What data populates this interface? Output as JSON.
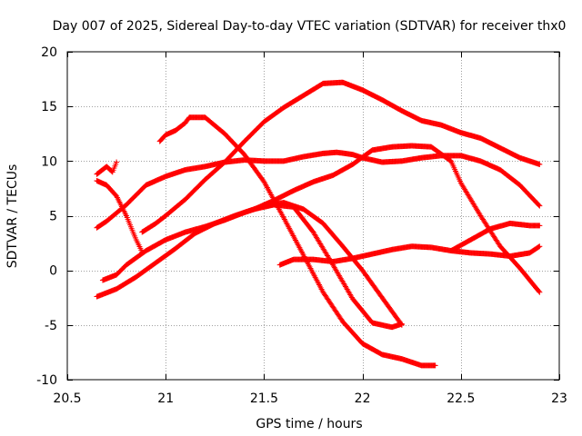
{
  "chart_data": {
    "type": "scatter",
    "title": "Day 007 of 2025, Sidereal Day-to-day VTEC variation (SDTVAR) for receiver thx0",
    "xlabel": "GPS time / hours",
    "ylabel": "SDTVAR / TECUs",
    "xlim": [
      20.5,
      23.0
    ],
    "ylim": [
      -10,
      20
    ],
    "xticks": [
      20.5,
      21,
      21.5,
      22,
      22.5,
      23
    ],
    "xtick_labels": [
      "20.5",
      "21",
      "21.5",
      "22",
      "22.5",
      "23"
    ],
    "yticks": [
      -10,
      -5,
      0,
      5,
      10,
      15,
      20
    ],
    "ytick_labels": [
      "-10",
      "-5",
      "0",
      "5",
      "10",
      "15",
      "20"
    ],
    "grid": true,
    "marker": "+",
    "color": "#ff0000",
    "series": [
      {
        "name": "s1",
        "points": [
          [
            20.65,
            3.9
          ],
          [
            20.7,
            4.5
          ],
          [
            20.8,
            6.0
          ],
          [
            20.9,
            7.8
          ],
          [
            21.0,
            8.6
          ],
          [
            21.1,
            9.2
          ],
          [
            21.2,
            9.5
          ],
          [
            21.3,
            9.9
          ],
          [
            21.4,
            10.1
          ],
          [
            21.5,
            10.0
          ],
          [
            21.6,
            10.0
          ],
          [
            21.7,
            10.4
          ],
          [
            21.8,
            10.7
          ],
          [
            21.87,
            10.8
          ],
          [
            21.95,
            10.6
          ],
          [
            22.0,
            10.3
          ],
          [
            22.1,
            9.9
          ],
          [
            22.2,
            10.0
          ],
          [
            22.3,
            10.3
          ],
          [
            22.4,
            10.5
          ],
          [
            22.5,
            10.5
          ],
          [
            22.6,
            10.0
          ],
          [
            22.7,
            9.2
          ],
          [
            22.8,
            7.8
          ],
          [
            22.9,
            5.9
          ]
        ]
      },
      {
        "name": "s2",
        "points": [
          [
            20.65,
            8.2
          ],
          [
            20.7,
            7.8
          ],
          [
            20.75,
            6.8
          ],
          [
            20.8,
            5.0
          ],
          [
            20.85,
            2.8
          ],
          [
            20.88,
            1.7
          ]
        ]
      },
      {
        "name": "s3",
        "points": [
          [
            20.65,
            8.8
          ],
          [
            20.7,
            9.5
          ],
          [
            20.73,
            9.0
          ],
          [
            20.75,
            9.9
          ]
        ]
      },
      {
        "name": "s4",
        "points": [
          [
            20.68,
            -0.9
          ],
          [
            20.75,
            -0.4
          ],
          [
            20.8,
            0.5
          ],
          [
            20.9,
            1.8
          ],
          [
            21.0,
            2.8
          ],
          [
            21.1,
            3.5
          ],
          [
            21.2,
            4.0
          ],
          [
            21.3,
            4.6
          ],
          [
            21.4,
            5.3
          ],
          [
            21.5,
            5.9
          ],
          [
            21.6,
            6.2
          ],
          [
            21.7,
            5.6
          ],
          [
            21.8,
            4.3
          ],
          [
            21.9,
            2.2
          ],
          [
            22.0,
            0.0
          ],
          [
            22.1,
            -2.5
          ],
          [
            22.2,
            -5.0
          ]
        ]
      },
      {
        "name": "s5",
        "points": [
          [
            20.65,
            -2.4
          ],
          [
            20.75,
            -1.7
          ],
          [
            20.85,
            -0.6
          ],
          [
            20.95,
            0.7
          ],
          [
            21.05,
            2.0
          ],
          [
            21.15,
            3.4
          ],
          [
            21.25,
            4.3
          ],
          [
            21.35,
            5.0
          ],
          [
            21.45,
            5.6
          ],
          [
            21.55,
            6.0
          ],
          [
            21.65,
            5.8
          ],
          [
            21.75,
            3.5
          ],
          [
            21.85,
            0.5
          ],
          [
            21.95,
            -2.6
          ],
          [
            22.05,
            -4.8
          ],
          [
            22.15,
            -5.2
          ],
          [
            22.2,
            -4.9
          ]
        ]
      },
      {
        "name": "s6",
        "points": [
          [
            20.88,
            3.5
          ],
          [
            20.95,
            4.3
          ],
          [
            21.0,
            5.0
          ],
          [
            21.1,
            6.5
          ],
          [
            21.2,
            8.3
          ],
          [
            21.3,
            9.9
          ],
          [
            21.4,
            11.8
          ],
          [
            21.5,
            13.6
          ],
          [
            21.6,
            14.9
          ],
          [
            21.7,
            16.0
          ],
          [
            21.8,
            17.1
          ],
          [
            21.9,
            17.2
          ],
          [
            22.0,
            16.5
          ],
          [
            22.1,
            15.6
          ],
          [
            22.2,
            14.6
          ],
          [
            22.3,
            13.7
          ],
          [
            22.4,
            13.3
          ],
          [
            22.5,
            12.6
          ],
          [
            22.6,
            12.1
          ],
          [
            22.7,
            11.2
          ],
          [
            22.8,
            10.3
          ],
          [
            22.9,
            9.7
          ]
        ]
      },
      {
        "name": "s7",
        "points": [
          [
            20.97,
            11.8
          ],
          [
            21.0,
            12.4
          ],
          [
            21.05,
            12.8
          ],
          [
            21.1,
            13.5
          ],
          [
            21.12,
            14.0
          ],
          [
            21.2,
            14.0
          ],
          [
            21.3,
            12.5
          ],
          [
            21.4,
            10.6
          ],
          [
            21.5,
            8.1
          ],
          [
            21.6,
            4.8
          ],
          [
            21.7,
            1.4
          ],
          [
            21.8,
            -2.0
          ],
          [
            21.9,
            -4.7
          ],
          [
            22.0,
            -6.7
          ],
          [
            22.1,
            -7.7
          ],
          [
            22.2,
            -8.1
          ],
          [
            22.3,
            -8.7
          ],
          [
            22.37,
            -8.7
          ]
        ]
      },
      {
        "name": "s8",
        "points": [
          [
            21.45,
            5.6
          ],
          [
            21.55,
            6.4
          ],
          [
            21.65,
            7.3
          ],
          [
            21.75,
            8.1
          ],
          [
            21.85,
            8.7
          ],
          [
            21.95,
            9.7
          ],
          [
            22.05,
            11.0
          ],
          [
            22.15,
            11.3
          ],
          [
            22.25,
            11.4
          ],
          [
            22.35,
            11.3
          ],
          [
            22.45,
            10.0
          ],
          [
            22.5,
            8.0
          ],
          [
            22.6,
            5.0
          ],
          [
            22.7,
            2.2
          ],
          [
            22.8,
            0.2
          ],
          [
            22.9,
            -2.0
          ]
        ]
      },
      {
        "name": "s9",
        "points": [
          [
            21.58,
            0.5
          ],
          [
            21.65,
            1.0
          ],
          [
            21.75,
            1.0
          ],
          [
            21.85,
            0.8
          ],
          [
            21.95,
            1.1
          ],
          [
            22.05,
            1.5
          ],
          [
            22.15,
            1.9
          ],
          [
            22.25,
            2.2
          ],
          [
            22.35,
            2.1
          ],
          [
            22.45,
            1.8
          ],
          [
            22.55,
            1.6
          ],
          [
            22.65,
            1.5
          ],
          [
            22.75,
            1.3
          ],
          [
            22.85,
            1.6
          ],
          [
            22.9,
            2.2
          ]
        ]
      },
      {
        "name": "s10",
        "points": [
          [
            22.45,
            1.8
          ],
          [
            22.55,
            2.8
          ],
          [
            22.65,
            3.8
          ],
          [
            22.75,
            4.3
          ],
          [
            22.85,
            4.1
          ],
          [
            22.9,
            4.1
          ]
        ]
      }
    ]
  }
}
